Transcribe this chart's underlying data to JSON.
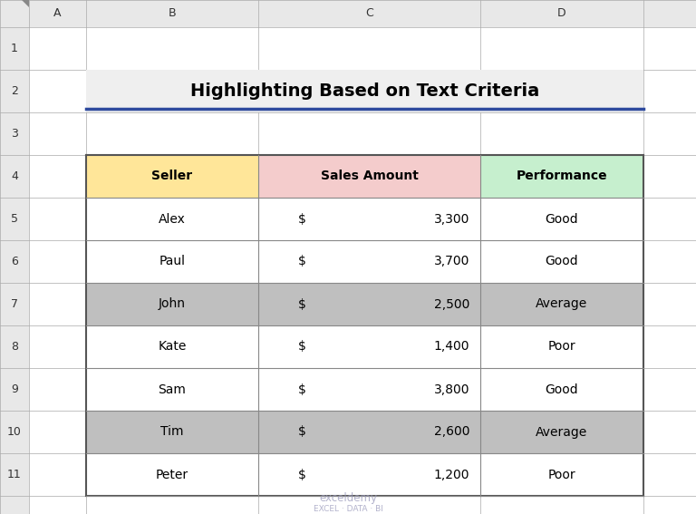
{
  "title": "Highlighting Based on Text Criteria",
  "title_fontsize": 14,
  "title_color": "#000000",
  "title_underline_color": "#2E4A9E",
  "background_color": "#FFFFFF",
  "col_headers": [
    "A",
    "B",
    "C",
    "D"
  ],
  "row_numbers": [
    "1",
    "2",
    "3",
    "4",
    "5",
    "6",
    "7",
    "8",
    "9",
    "10",
    "11"
  ],
  "table_headers": [
    "Seller",
    "Sales Amount",
    "Performance"
  ],
  "header_colors": [
    "#FFE699",
    "#F4CCCC",
    "#C6EFCE"
  ],
  "data_rows": [
    [
      "Alex",
      "$",
      "3,300",
      "Good"
    ],
    [
      "Paul",
      "$",
      "3,700",
      "Good"
    ],
    [
      "John",
      "$",
      "2,500",
      "Average"
    ],
    [
      "Kate",
      "$",
      "1,400",
      "Poor"
    ],
    [
      "Sam",
      "$",
      "3,800",
      "Good"
    ],
    [
      "Tim",
      "$",
      "2,600",
      "Average"
    ],
    [
      "Peter",
      "$",
      "1,200",
      "Poor"
    ]
  ],
  "row_highlight_color": "#BFBFBF",
  "row_normal_color": "#FFFFFF",
  "highlighted_rows": [
    2,
    5
  ],
  "watermark_color": "#9999BB",
  "grid_color": "#AAAAAA",
  "header_bg": "#E8E8E8",
  "row_header_bg": "#E8E8E8",
  "corner_triangle_color": "#888888",
  "table_border_color": "#555555",
  "inner_border_color": "#888888"
}
